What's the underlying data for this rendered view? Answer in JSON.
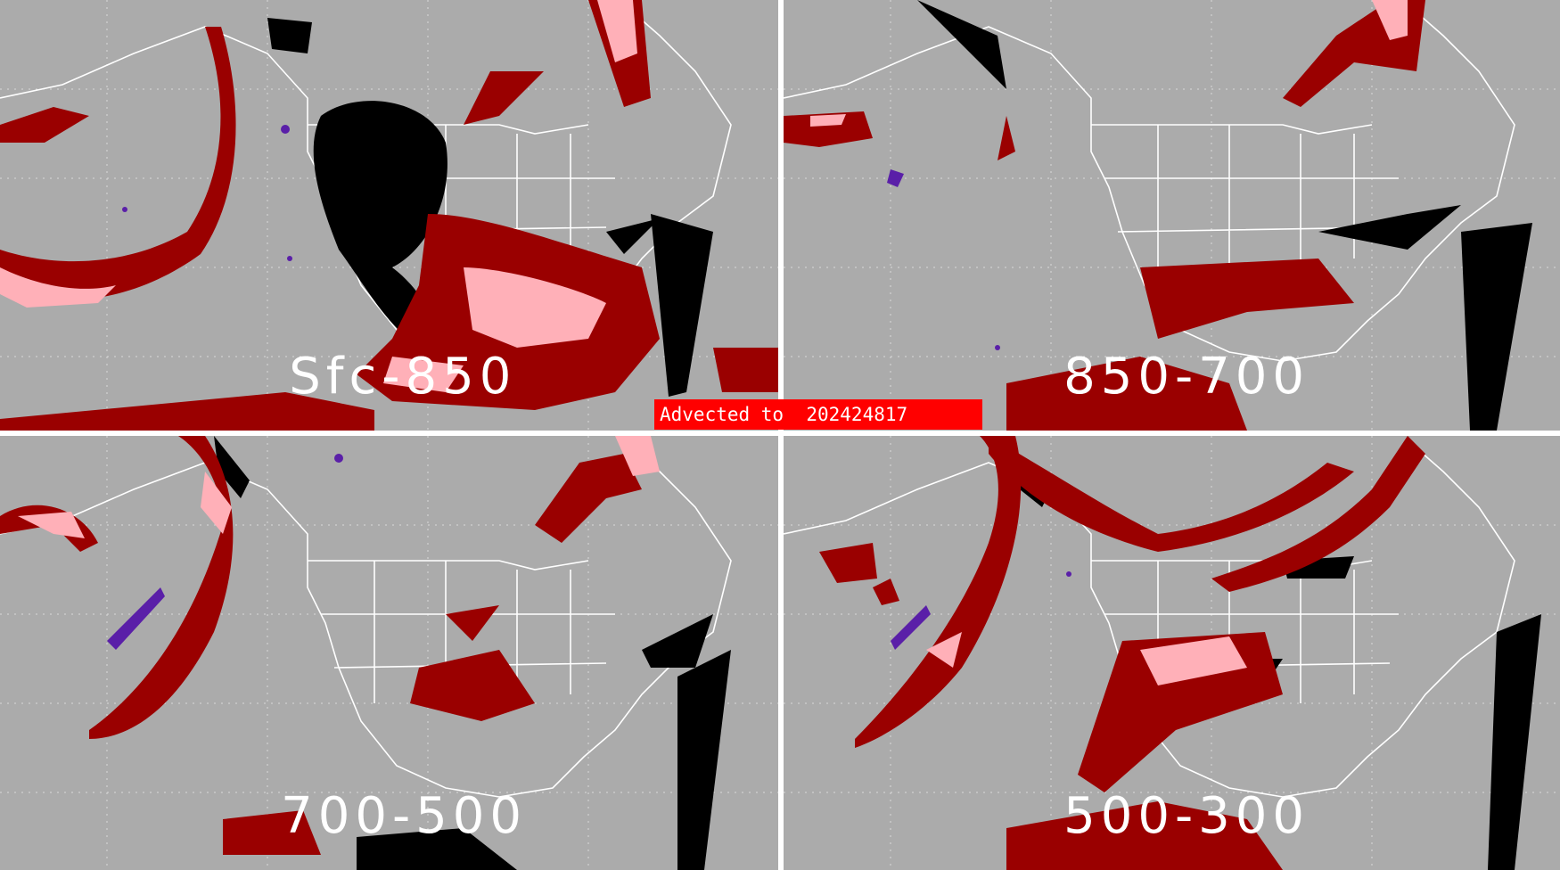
{
  "panels": [
    {
      "id": "sfc-850",
      "label": "Sfc-850"
    },
    {
      "id": "850-700",
      "label": "850-700"
    },
    {
      "id": "700-500",
      "label": "700-500"
    },
    {
      "id": "500-300",
      "label": "500-300"
    }
  ],
  "advection_banner": "Advected to  202424817",
  "colors": {
    "ocean_background": "#ababab",
    "map_lines": "#ffffff",
    "dark_red": "#9a0000",
    "pink": "#ffb0b8",
    "black": "#000000",
    "purple": "#5a1fa8",
    "banner": "#ff0000"
  }
}
